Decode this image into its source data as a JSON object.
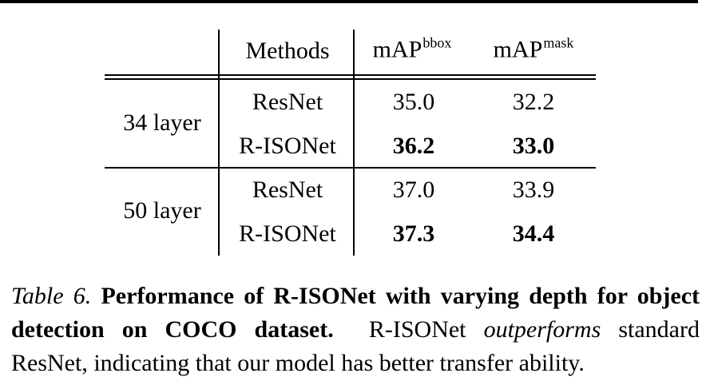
{
  "table": {
    "header": {
      "methods": "Methods",
      "col1_base": "mAP",
      "col1_sup": "bbox",
      "col2_base": "mAP",
      "col2_sup": "mask"
    },
    "groups": [
      {
        "label": "34 layer",
        "rows": [
          {
            "method": "ResNet",
            "bbox": "35.0",
            "mask": "32.2",
            "bold": false
          },
          {
            "method": "R-ISONet",
            "bbox": "36.2",
            "mask": "33.0",
            "bold": true
          }
        ]
      },
      {
        "label": "50 layer",
        "rows": [
          {
            "method": "ResNet",
            "bbox": "37.0",
            "mask": "33.9",
            "bold": false
          },
          {
            "method": "R-ISONet",
            "bbox": "37.3",
            "mask": "34.4",
            "bold": true
          }
        ]
      }
    ]
  },
  "caption": {
    "label": "Table 6.",
    "title": "Performance of R-ISONet with varying depth for object detection on COCO dataset.",
    "text_1": "R-ISONet",
    "text_emph": "outperforms",
    "text_2": "standard ResNet, indicating that our model has better transfer ability."
  }
}
